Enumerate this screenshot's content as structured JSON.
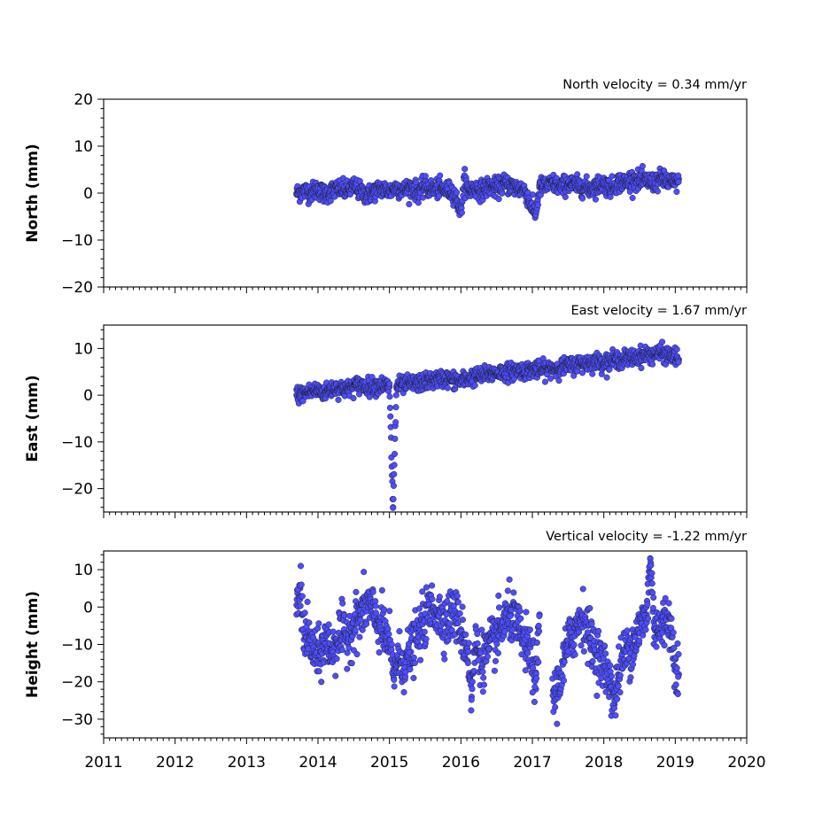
{
  "chart_data": [
    {
      "type": "scatter",
      "velocity_label": "North velocity = 0.34 mm/yr",
      "ylabel": "North (mm)",
      "xlim": [
        2011,
        2020
      ],
      "ylim": [
        -20,
        20
      ],
      "yticks": [
        20,
        10,
        0,
        -10,
        -20
      ],
      "ytick_labels": [
        "20",
        "10",
        "0",
        "−10",
        "−20"
      ],
      "series": [
        {
          "x": [
            2013.7,
            2013.8,
            2013.9,
            2014.0,
            2014.1,
            2014.2,
            2014.3,
            2014.4,
            2014.5,
            2014.6,
            2014.7,
            2014.8,
            2014.9,
            2015.0,
            2015.1,
            2015.2,
            2015.3,
            2015.4,
            2015.5,
            2015.6,
            2015.7,
            2015.8,
            2015.9,
            2016.0,
            2016.05,
            2016.1,
            2016.2,
            2016.3,
            2016.4,
            2016.5,
            2016.6,
            2016.7,
            2016.8,
            2016.9,
            2017.0,
            2017.05,
            2017.1,
            2017.2,
            2017.3,
            2017.4,
            2017.5,
            2017.6,
            2017.7,
            2017.8,
            2017.9,
            2018.0,
            2018.1,
            2018.2,
            2018.3,
            2018.4,
            2018.5,
            2018.6,
            2018.7,
            2018.8,
            2018.9,
            2019.0,
            2019.05
          ],
          "y": [
            0.0,
            0.5,
            0.2,
            0.8,
            -0.3,
            0.6,
            1.0,
            0.4,
            1.5,
            0.2,
            -0.4,
            0.6,
            1.0,
            0.4,
            1.2,
            0.6,
            1.3,
            0.2,
            1.4,
            0.8,
            1.0,
            0.6,
            0.2,
            -4.0,
            3.0,
            0.4,
            1.0,
            0.6,
            1.6,
            1.0,
            2.0,
            1.6,
            1.0,
            0.6,
            -3.5,
            -4.2,
            1.2,
            1.6,
            2.0,
            1.2,
            2.2,
            1.6,
            1.4,
            1.0,
            1.6,
            2.0,
            1.0,
            2.4,
            2.2,
            3.0,
            2.6,
            2.6,
            2.2,
            3.0,
            2.4,
            2.0,
            3.0
          ]
        }
      ]
    },
    {
      "type": "scatter",
      "velocity_label": "East velocity = 1.67 mm/yr",
      "ylabel": "East (mm)",
      "xlim": [
        2011,
        2020
      ],
      "ylim": [
        -25,
        15
      ],
      "yticks": [
        10,
        0,
        -10,
        -20
      ],
      "ytick_labels": [
        "10",
        "0",
        "−10",
        "−20"
      ],
      "series": [
        {
          "x": [
            2013.7,
            2013.8,
            2013.9,
            2014.0,
            2014.1,
            2014.2,
            2014.3,
            2014.4,
            2014.5,
            2014.6,
            2014.7,
            2014.8,
            2014.9,
            2015.0,
            2015.05,
            2015.1,
            2015.2,
            2015.3,
            2015.4,
            2015.5,
            2015.6,
            2015.7,
            2015.8,
            2015.9,
            2016.0,
            2016.1,
            2016.2,
            2016.3,
            2016.4,
            2016.5,
            2016.6,
            2016.7,
            2016.8,
            2016.9,
            2017.0,
            2017.1,
            2017.2,
            2017.3,
            2017.4,
            2017.5,
            2017.6,
            2017.7,
            2017.8,
            2017.9,
            2018.0,
            2018.1,
            2018.2,
            2018.3,
            2018.4,
            2018.5,
            2018.6,
            2018.7,
            2018.8,
            2018.9,
            2019.0,
            2019.05
          ],
          "y": [
            0.0,
            0.4,
            0.8,
            1.0,
            0.6,
            1.4,
            1.6,
            1.2,
            2.0,
            2.2,
            1.8,
            2.0,
            2.2,
            1.8,
            -24.0,
            2.0,
            2.2,
            2.4,
            2.6,
            2.8,
            3.2,
            3.4,
            3.6,
            3.2,
            3.0,
            3.6,
            4.0,
            4.2,
            4.6,
            4.8,
            5.0,
            5.0,
            5.4,
            5.2,
            5.6,
            5.4,
            5.6,
            5.8,
            6.0,
            6.2,
            6.6,
            6.8,
            7.0,
            7.2,
            7.0,
            7.4,
            7.6,
            7.8,
            8.0,
            8.4,
            8.6,
            8.8,
            9.0,
            8.6,
            8.4,
            7.6
          ]
        }
      ]
    },
    {
      "type": "scatter",
      "velocity_label": "Vertical velocity = -1.22 mm/yr",
      "ylabel": "Height (mm)",
      "xlim": [
        2011,
        2020
      ],
      "ylim": [
        -35,
        15
      ],
      "yticks": [
        10,
        0,
        -10,
        -20,
        -30
      ],
      "ytick_labels": [
        "10",
        "0",
        "−10",
        "−20",
        "−30"
      ],
      "series": [
        {
          "x": [
            2013.7,
            2013.75,
            2013.8,
            2013.9,
            2014.0,
            2014.1,
            2014.2,
            2014.3,
            2014.4,
            2014.5,
            2014.6,
            2014.7,
            2014.8,
            2014.9,
            2015.0,
            2015.05,
            2015.1,
            2015.2,
            2015.3,
            2015.4,
            2015.5,
            2015.6,
            2015.7,
            2015.8,
            2015.9,
            2016.0,
            2016.1,
            2016.15,
            2016.2,
            2016.3,
            2016.4,
            2016.5,
            2016.6,
            2016.7,
            2016.8,
            2016.9,
            2017.0,
            2017.05,
            2017.1,
            2017.3,
            2017.35,
            2017.4,
            2017.5,
            2017.6,
            2017.7,
            2017.8,
            2017.9,
            2018.0,
            2018.1,
            2018.15,
            2018.2,
            2018.3,
            2018.4,
            2018.5,
            2018.6,
            2018.65,
            2018.7,
            2018.8,
            2018.9,
            2019.0,
            2019.05
          ],
          "y": [
            -2.0,
            5.0,
            -6.0,
            -10.0,
            -14.0,
            -9.0,
            -12.0,
            -7.0,
            -8.0,
            -5.0,
            -2.0,
            1.0,
            -3.0,
            -6.0,
            -10.0,
            -18.0,
            -14.0,
            -15.0,
            -12.0,
            -8.0,
            -3.0,
            0.0,
            -2.0,
            -4.0,
            -1.0,
            -6.0,
            -12.0,
            -24.0,
            -10.0,
            -14.0,
            -11.0,
            -8.0,
            -4.0,
            -2.0,
            -6.0,
            -10.0,
            -14.0,
            -22.0,
            -2.0,
            -24.0,
            -22.0,
            -18.0,
            -10.0,
            -6.0,
            -2.0,
            -8.0,
            -12.0,
            -16.0,
            -20.0,
            -26.0,
            -18.0,
            -12.0,
            -10.0,
            -6.0,
            -2.0,
            13.0,
            -4.0,
            -6.0,
            -2.0,
            -14.0,
            -18.0
          ]
        }
      ]
    }
  ],
  "x_axis": {
    "ticks": [
      2011,
      2012,
      2013,
      2014,
      2015,
      2016,
      2017,
      2018,
      2019,
      2020
    ],
    "tick_labels": [
      "2011",
      "2012",
      "2013",
      "2014",
      "2015",
      "2016",
      "2017",
      "2018",
      "2019",
      "2020"
    ]
  },
  "colors": {
    "marker_fill": "#4d4dff",
    "marker_edge": "#1a1a1a"
  }
}
